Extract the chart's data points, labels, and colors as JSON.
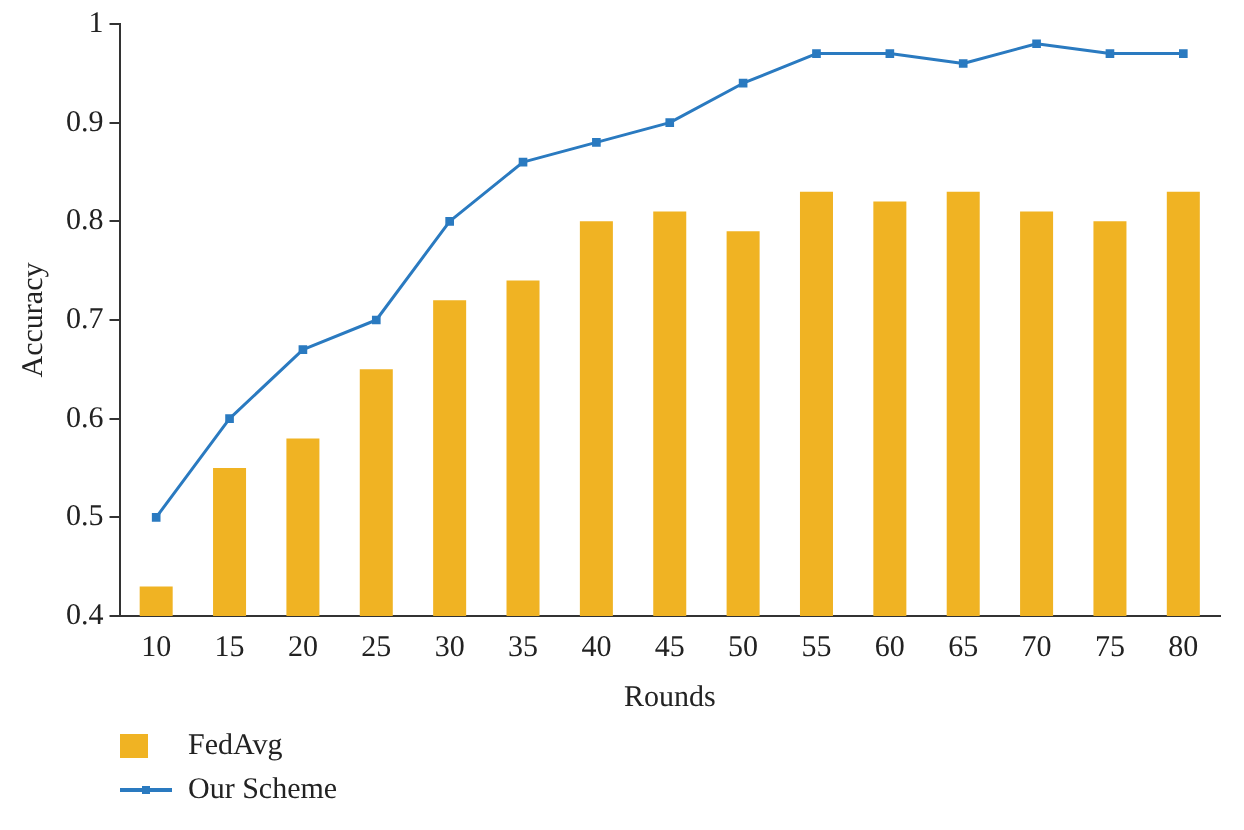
{
  "chart_data": {
    "type": "bar",
    "xlabel": "Rounds",
    "ylabel": "Accuracy",
    "categories": [
      "10",
      "15",
      "20",
      "25",
      "30",
      "35",
      "40",
      "45",
      "50",
      "55",
      "60",
      "65",
      "70",
      "75",
      "80"
    ],
    "series": [
      {
        "name": "FedAvg",
        "color": "#f0b323",
        "values": [
          0.43,
          0.55,
          0.58,
          0.65,
          0.72,
          0.74,
          0.8,
          0.81,
          0.79,
          0.83,
          0.82,
          0.83,
          0.81,
          0.8,
          0.83
        ]
      },
      {
        "name": "Our Scheme",
        "type": "line",
        "color": "#2a7ac0",
        "marker": "square",
        "values": [
          0.5,
          0.6,
          0.67,
          0.7,
          0.8,
          0.86,
          0.88,
          0.9,
          0.94,
          0.97,
          0.97,
          0.96,
          0.98,
          0.97,
          0.97
        ]
      }
    ],
    "ylim": [
      0.4,
      1
    ],
    "yticks": [
      0.4,
      0.5,
      0.6,
      0.7,
      0.8,
      0.9,
      1
    ],
    "grid": false,
    "legend": "bottom left"
  }
}
